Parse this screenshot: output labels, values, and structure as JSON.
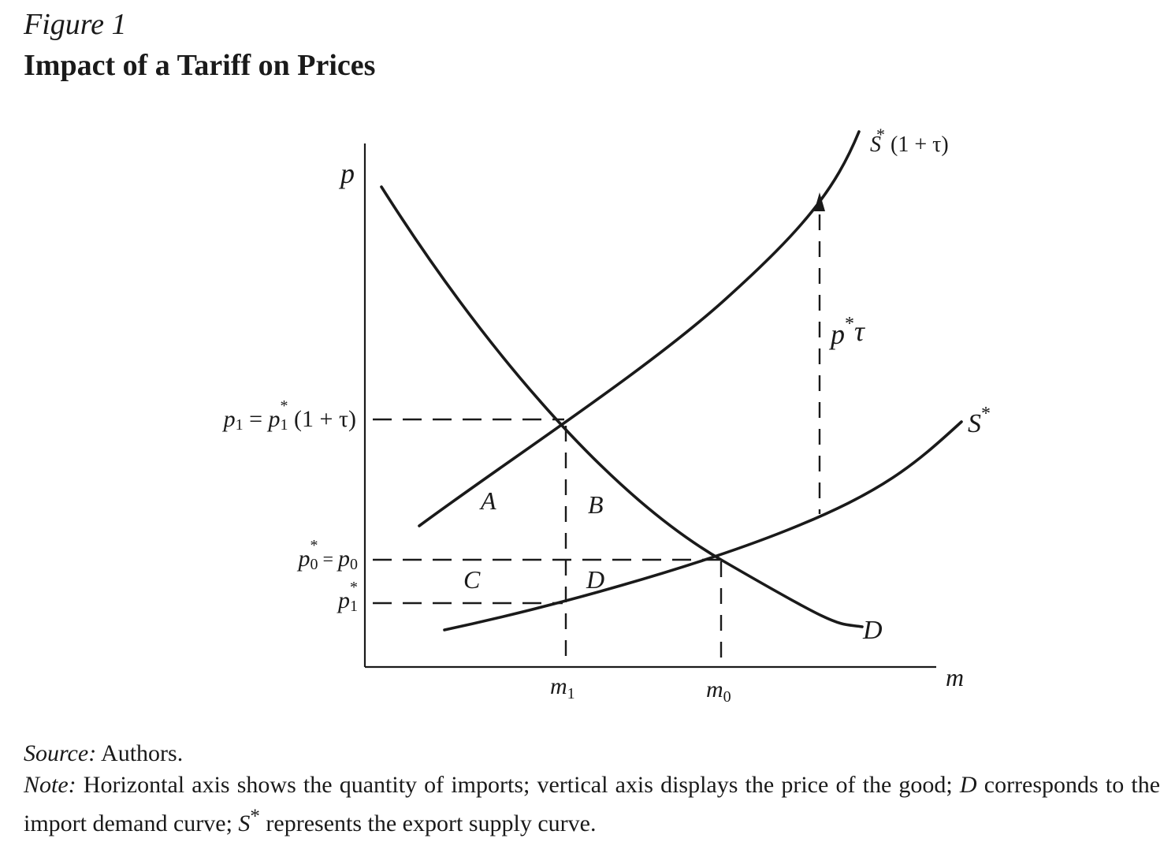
{
  "figure": {
    "label": "Figure 1",
    "title": "Impact of a Tariff on Prices"
  },
  "diagram": {
    "axes": {
      "y": "p",
      "x": "m"
    },
    "y_ticks": {
      "p1_base": "p",
      "p1_sub": "1",
      "p1_equals": " = ",
      "p1_star_base": "p",
      "p1_star_sub": "1",
      "p1_star_sup": "*",
      "p1_rest": " (1 + τ)",
      "p0_star_base": "p",
      "p0_star_sub": "0",
      "p0_star_sup": "*",
      "p0_equals": " = ",
      "p0_base": "p",
      "p0_sub": "0",
      "pstar1_base": "p",
      "pstar1_sub": "1",
      "pstar1_sup": "*"
    },
    "x_ticks": {
      "m1_base": "m",
      "m1_sub": "1",
      "m0_base": "m",
      "m0_sub": "0"
    },
    "curve_labels": {
      "tariff_supply_s": "S",
      "tariff_supply_star": "*",
      "tariff_supply_rest": " (1 + τ)",
      "supply_s": "S",
      "supply_star": "*",
      "demand": "D"
    },
    "regions": {
      "a": "A",
      "b": "B",
      "c": "C",
      "d": "D"
    },
    "wedge": {
      "base": "p",
      "sup": "*",
      "rest": "τ"
    }
  },
  "caption": {
    "source_label": "Source:",
    "source_text": " Authors.",
    "note_label": "Note:",
    "note_text_1": " Horizontal axis shows the quantity of imports; vertical axis displays the price of the good; ",
    "note_D": "D",
    "note_text_2": " corresponds to the import demand curve; ",
    "note_S": "S",
    "note_star": "*",
    "note_text_3": " represents the export supply curve."
  }
}
